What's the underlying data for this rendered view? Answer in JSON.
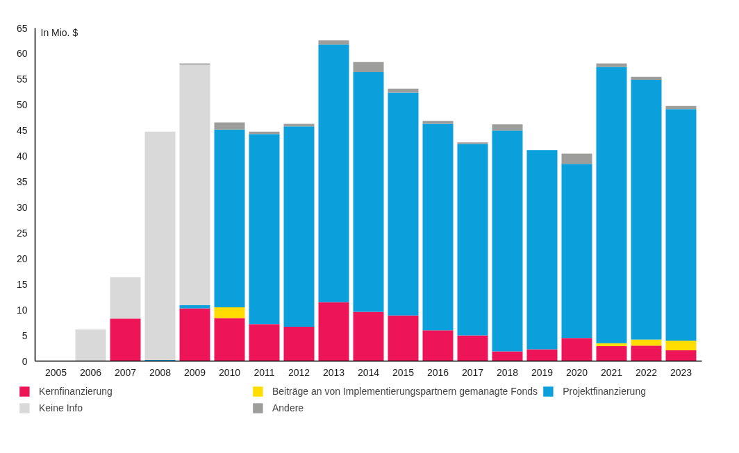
{
  "chart_data": {
    "type": "bar",
    "stacked": true,
    "ylabel": "In Mio. $",
    "categories": [
      "2005",
      "2006",
      "2007",
      "2008",
      "2009",
      "2010",
      "2011",
      "2012",
      "2013",
      "2014",
      "2015",
      "2016",
      "2017",
      "2018",
      "2019",
      "2020",
      "2021",
      "2022",
      "2023"
    ],
    "series": [
      {
        "name": "Kernfinanzierung",
        "color": "#ed1558",
        "values": [
          null,
          null,
          8.3,
          null,
          10.3,
          8.4,
          7.2,
          6.7,
          11.5,
          9.6,
          8.9,
          6.0,
          5.0,
          1.9,
          2.3,
          4.5,
          2.9,
          3.0,
          2.1
        ]
      },
      {
        "name": "Beiträge an von Implementierungspartnern gemanagte Fonds",
        "color": "#ffdd00",
        "values": [
          null,
          null,
          null,
          null,
          null,
          2.1,
          null,
          null,
          null,
          null,
          null,
          null,
          null,
          null,
          null,
          null,
          0.6,
          1.2,
          1.9
        ]
      },
      {
        "name": "Projektfinanzierung",
        "color": "#0ba0dc",
        "values": [
          null,
          null,
          null,
          0.2,
          0.6,
          34.7,
          37.1,
          39.1,
          50.3,
          46.8,
          43.5,
          40.3,
          37.4,
          43.1,
          38.9,
          34.0,
          53.9,
          50.7,
          45.2
        ]
      },
      {
        "name": "Keine Info",
        "color": "#d9d9d9",
        "values": [
          null,
          6.2,
          8.1,
          44.6,
          47.0,
          null,
          null,
          null,
          null,
          null,
          null,
          null,
          null,
          null,
          null,
          null,
          null,
          null,
          null
        ]
      },
      {
        "name": "Andere",
        "color": "#9d9d9c",
        "values": [
          null,
          null,
          null,
          null,
          0.2,
          1.4,
          0.5,
          0.5,
          0.8,
          2.0,
          0.8,
          0.6,
          0.3,
          1.2,
          null,
          2.0,
          0.7,
          0.6,
          0.6
        ]
      }
    ],
    "ylim": [
      0,
      65
    ],
    "yticks": [
      0,
      5,
      10,
      15,
      20,
      25,
      30,
      35,
      40,
      45,
      50,
      55,
      60,
      65
    ],
    "legend": "bottom",
    "grid": false
  }
}
